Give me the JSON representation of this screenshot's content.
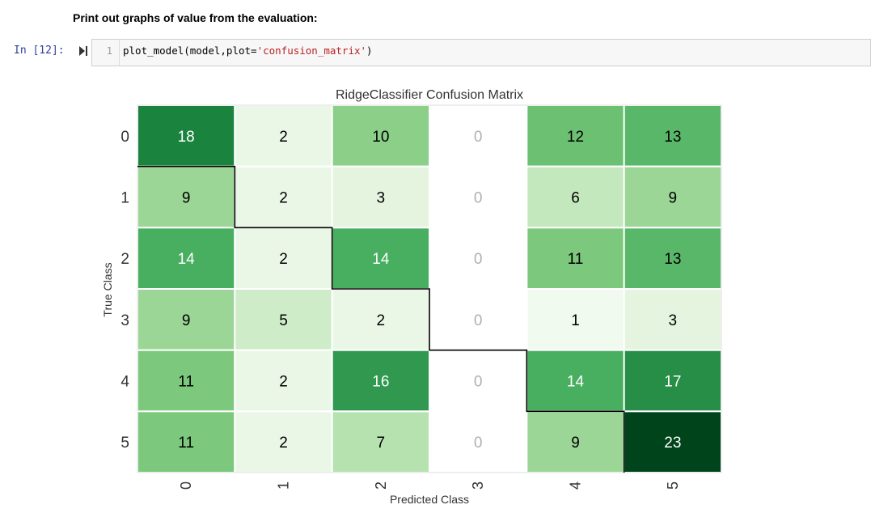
{
  "markdown": {
    "text": "Print out graphs of value from the evaluation:"
  },
  "cell": {
    "prompt": "In [12]:",
    "line_number": "1",
    "code_prefix": "plot_model(model,plot=",
    "code_string": "'confusion_matrix'",
    "code_suffix": ")"
  },
  "icons": {
    "run": "run-cell-icon"
  },
  "colors": {
    "prompt": "#303f9f",
    "string": "#ba2121",
    "border": "#000000"
  },
  "chart_data": {
    "type": "heatmap",
    "title": "RidgeClassifier Confusion Matrix",
    "xlabel": "Predicted Class",
    "ylabel": "True Class",
    "x_categories": [
      "0",
      "1",
      "2",
      "3",
      "4",
      "5"
    ],
    "y_categories": [
      "0",
      "1",
      "2",
      "3",
      "4",
      "5"
    ],
    "matrix": [
      [
        18,
        2,
        10,
        0,
        12,
        13
      ],
      [
        9,
        2,
        3,
        0,
        6,
        9
      ],
      [
        14,
        2,
        14,
        0,
        11,
        13
      ],
      [
        9,
        5,
        2,
        0,
        1,
        3
      ],
      [
        11,
        2,
        16,
        0,
        14,
        17
      ],
      [
        11,
        2,
        7,
        0,
        9,
        23
      ]
    ],
    "colormap": "Greens",
    "zero_cell_color": "#ffffff",
    "zero_text_color": "#b0b0b0",
    "diagonal_outline": true
  }
}
